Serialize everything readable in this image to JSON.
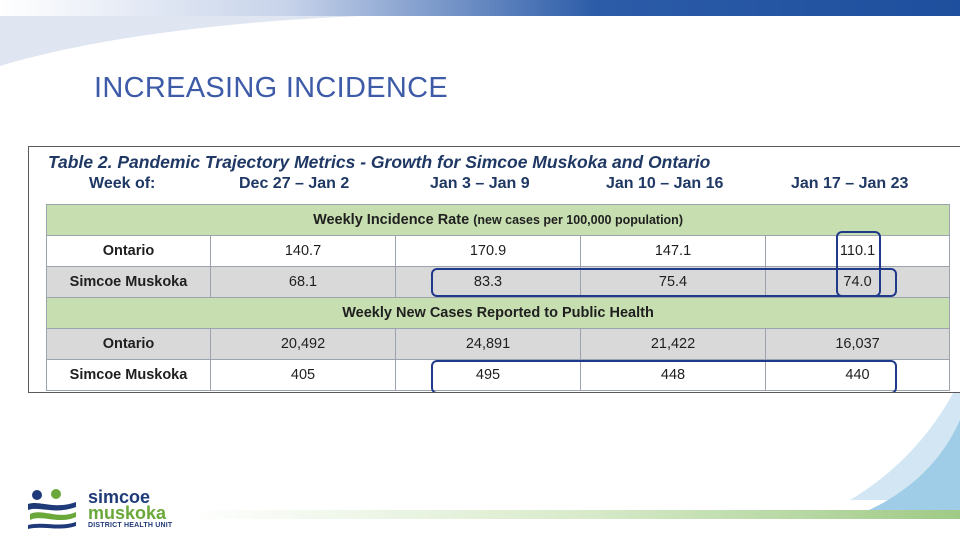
{
  "slide": {
    "title": "INCREASING INCIDENCE"
  },
  "table": {
    "caption": "Table 2. Pandemic Trajectory Metrics - Growth for Simcoe Muskoka and Ontario",
    "week_label": "Week of:",
    "weeks": [
      "Dec 27 – Jan 2",
      "Jan 3 – Jan 9",
      "Jan 10 – Jan 16",
      "Jan 17 – Jan 23"
    ],
    "sections": [
      {
        "title": "Weekly Incidence Rate",
        "note": "(new cases per 100,000 population)",
        "rows": [
          {
            "region": "Ontario",
            "values": [
              "140.7",
              "170.9",
              "147.1",
              "110.1"
            ]
          },
          {
            "region": "Simcoe Muskoka",
            "values": [
              "68.1",
              "83.3",
              "75.4",
              "74.0"
            ]
          }
        ]
      },
      {
        "title": "Weekly New Cases Reported to Public Health",
        "note": "",
        "rows": [
          {
            "region": "Ontario",
            "values": [
              "20,492",
              "24,891",
              "21,422",
              "16,037"
            ]
          },
          {
            "region": "Simcoe Muskoka",
            "values": [
              "405",
              "495",
              "448",
              "440"
            ]
          }
        ]
      }
    ]
  },
  "logo": {
    "line1": "simcoe",
    "line2": "muskoka",
    "line3": "DISTRICT HEALTH UNIT"
  },
  "colors": {
    "title": "#3e5ba8",
    "section_band": "#c6deb0",
    "shaded_row": "#d9d9d9",
    "highlight": "#1f3a8a",
    "brand_blue": "#1f3a78",
    "brand_green": "#6aa83a"
  }
}
